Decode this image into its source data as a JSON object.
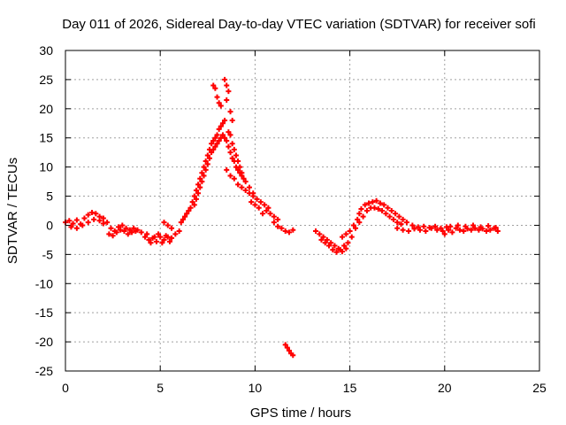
{
  "chart_data": {
    "type": "scatter",
    "title": "Day 011 of 2026, Sidereal Day-to-day VTEC variation (SDTVAR) for receiver sofi",
    "xlabel": "GPS time / hours",
    "ylabel": "SDTVAR / TECUs",
    "xlim": [
      0,
      25
    ],
    "ylim": [
      -25,
      30
    ],
    "xticks": [
      0,
      5,
      10,
      15,
      20,
      25
    ],
    "yticks": [
      -25,
      -20,
      -15,
      -10,
      -5,
      0,
      5,
      10,
      15,
      20,
      25,
      30
    ],
    "grid": true,
    "marker": "+",
    "series": [
      {
        "name": "SDTVAR",
        "color": "#ff0000",
        "points": [
          [
            0.0,
            0.5
          ],
          [
            0.2,
            0.8
          ],
          [
            0.4,
            0.3
          ],
          [
            0.6,
            0.9
          ],
          [
            0.8,
            0.2
          ],
          [
            1.0,
            1.2
          ],
          [
            1.2,
            1.8
          ],
          [
            1.4,
            2.2
          ],
          [
            1.6,
            2.0
          ],
          [
            1.8,
            1.5
          ],
          [
            0.3,
            -0.3
          ],
          [
            0.6,
            -0.5
          ],
          [
            0.9,
            0.0
          ],
          [
            1.2,
            0.5
          ],
          [
            1.5,
            1.0
          ],
          [
            1.8,
            0.8
          ],
          [
            2.0,
            0.3
          ],
          [
            2.0,
            1.2
          ],
          [
            2.2,
            0.5
          ],
          [
            2.4,
            -0.5
          ],
          [
            2.6,
            -1.0
          ],
          [
            2.8,
            -0.3
          ],
          [
            3.0,
            0.0
          ],
          [
            3.2,
            -0.5
          ],
          [
            3.4,
            -0.8
          ],
          [
            3.6,
            -0.5
          ],
          [
            2.3,
            -1.5
          ],
          [
            2.5,
            -1.8
          ],
          [
            2.7,
            -1.2
          ],
          [
            2.9,
            -0.8
          ],
          [
            3.1,
            -1.0
          ],
          [
            3.3,
            -1.5
          ],
          [
            3.5,
            -1.2
          ],
          [
            3.7,
            -1.0
          ],
          [
            3.8,
            -0.8
          ],
          [
            4.0,
            -1.2
          ],
          [
            4.2,
            -2.0
          ],
          [
            4.4,
            -2.5
          ],
          [
            4.6,
            -2.2
          ],
          [
            4.8,
            -2.8
          ],
          [
            5.0,
            -2.0
          ],
          [
            5.2,
            -2.5
          ],
          [
            5.4,
            -2.0
          ],
          [
            5.6,
            -2.2
          ],
          [
            4.3,
            -1.5
          ],
          [
            4.5,
            -3.0
          ],
          [
            4.7,
            -2.0
          ],
          [
            4.9,
            -1.5
          ],
          [
            5.1,
            -3.0
          ],
          [
            5.3,
            -1.8
          ],
          [
            5.5,
            -2.8
          ],
          [
            5.2,
            0.5
          ],
          [
            5.4,
            0.0
          ],
          [
            5.6,
            -0.5
          ],
          [
            5.8,
            -1.5
          ],
          [
            6.0,
            -1.0
          ],
          [
            6.1,
            0.5
          ],
          [
            6.2,
            1.0
          ],
          [
            6.3,
            1.5
          ],
          [
            6.4,
            2.0
          ],
          [
            6.5,
            2.5
          ],
          [
            6.6,
            3.0
          ],
          [
            6.7,
            4.0
          ],
          [
            6.8,
            5.0
          ],
          [
            6.9,
            6.0
          ],
          [
            7.0,
            7.0
          ],
          [
            7.1,
            8.0
          ],
          [
            7.2,
            9.0
          ],
          [
            7.3,
            10.0
          ],
          [
            7.4,
            11.0
          ],
          [
            7.5,
            12.0
          ],
          [
            6.8,
            3.5
          ],
          [
            6.9,
            4.5
          ],
          [
            7.0,
            5.5
          ],
          [
            7.1,
            6.5
          ],
          [
            7.2,
            7.5
          ],
          [
            7.3,
            8.5
          ],
          [
            7.4,
            9.5
          ],
          [
            7.5,
            10.5
          ],
          [
            7.6,
            11.5
          ],
          [
            7.7,
            12.5
          ],
          [
            7.6,
            13.0
          ],
          [
            7.7,
            14.0
          ],
          [
            7.8,
            14.5
          ],
          [
            7.9,
            15.0
          ],
          [
            8.0,
            15.5
          ],
          [
            8.1,
            16.5
          ],
          [
            8.2,
            17.0
          ],
          [
            8.3,
            17.5
          ],
          [
            8.4,
            18.0
          ],
          [
            7.8,
            13.0
          ],
          [
            7.9,
            13.5
          ],
          [
            8.0,
            14.0
          ],
          [
            8.1,
            14.5
          ],
          [
            8.2,
            15.0
          ],
          [
            8.3,
            15.5
          ],
          [
            8.4,
            15.0
          ],
          [
            7.8,
            24.0
          ],
          [
            7.9,
            23.5
          ],
          [
            8.0,
            22.0
          ],
          [
            8.1,
            21.0
          ],
          [
            8.2,
            20.5
          ],
          [
            8.4,
            25.0
          ],
          [
            8.5,
            24.0
          ],
          [
            8.6,
            23.0
          ],
          [
            8.5,
            21.5
          ],
          [
            8.7,
            19.5
          ],
          [
            8.8,
            18.0
          ],
          [
            8.5,
            14.5
          ],
          [
            8.6,
            13.5
          ],
          [
            8.7,
            12.5
          ],
          [
            8.8,
            11.5
          ],
          [
            8.9,
            11.0
          ],
          [
            9.0,
            10.0
          ],
          [
            9.1,
            9.5
          ],
          [
            9.2,
            9.0
          ],
          [
            9.3,
            8.5
          ],
          [
            8.6,
            16.0
          ],
          [
            8.7,
            15.5
          ],
          [
            8.8,
            14.0
          ],
          [
            8.9,
            13.0
          ],
          [
            9.0,
            12.0
          ],
          [
            9.1,
            11.0
          ],
          [
            9.2,
            10.0
          ],
          [
            9.3,
            9.0
          ],
          [
            9.4,
            8.0
          ],
          [
            8.5,
            9.5
          ],
          [
            8.7,
            8.5
          ],
          [
            8.9,
            8.0
          ],
          [
            9.1,
            7.0
          ],
          [
            9.3,
            6.5
          ],
          [
            9.5,
            6.0
          ],
          [
            9.7,
            5.5
          ],
          [
            9.9,
            5.0
          ],
          [
            9.5,
            7.5
          ],
          [
            9.7,
            6.5
          ],
          [
            9.9,
            5.5
          ],
          [
            10.1,
            4.5
          ],
          [
            10.3,
            4.0
          ],
          [
            10.5,
            3.5
          ],
          [
            10.7,
            3.0
          ],
          [
            9.8,
            4.0
          ],
          [
            10.0,
            3.5
          ],
          [
            10.2,
            3.0
          ],
          [
            10.4,
            2.0
          ],
          [
            10.6,
            2.5
          ],
          [
            10.8,
            2.0
          ],
          [
            11.0,
            1.5
          ],
          [
            11.2,
            1.0
          ],
          [
            11.0,
            0.5
          ],
          [
            11.2,
            -0.2
          ],
          [
            11.4,
            -0.5
          ],
          [
            11.6,
            -1.0
          ],
          [
            11.8,
            -1.2
          ],
          [
            12.0,
            -0.8
          ],
          [
            11.6,
            -20.5
          ],
          [
            11.7,
            -21.0
          ],
          [
            11.8,
            -21.5
          ],
          [
            11.9,
            -22.0
          ],
          [
            12.0,
            -22.3
          ],
          [
            13.2,
            -1.0
          ],
          [
            13.4,
            -1.5
          ],
          [
            13.6,
            -2.0
          ],
          [
            13.8,
            -2.5
          ],
          [
            14.0,
            -3.0
          ],
          [
            14.2,
            -3.5
          ],
          [
            14.4,
            -4.0
          ],
          [
            14.6,
            -4.5
          ],
          [
            14.8,
            -4.0
          ],
          [
            13.5,
            -2.5
          ],
          [
            13.7,
            -3.0
          ],
          [
            13.9,
            -3.5
          ],
          [
            14.1,
            -4.2
          ],
          [
            14.3,
            -4.6
          ],
          [
            14.5,
            -4.2
          ],
          [
            14.7,
            -3.5
          ],
          [
            14.6,
            -2.0
          ],
          [
            14.8,
            -1.5
          ],
          [
            15.0,
            -1.0
          ],
          [
            15.2,
            0.0
          ],
          [
            15.4,
            1.0
          ],
          [
            15.5,
            2.0
          ],
          [
            15.6,
            2.8
          ],
          [
            15.8,
            3.5
          ],
          [
            16.0,
            3.8
          ],
          [
            14.9,
            -3.0
          ],
          [
            15.1,
            -2.0
          ],
          [
            15.3,
            -0.5
          ],
          [
            15.5,
            0.5
          ],
          [
            15.7,
            1.5
          ],
          [
            15.9,
            2.5
          ],
          [
            16.1,
            3.0
          ],
          [
            16.2,
            4.0
          ],
          [
            16.4,
            4.2
          ],
          [
            16.6,
            3.8
          ],
          [
            16.8,
            3.5
          ],
          [
            17.0,
            3.0
          ],
          [
            17.2,
            2.5
          ],
          [
            17.4,
            2.0
          ],
          [
            17.6,
            1.5
          ],
          [
            17.8,
            1.0
          ],
          [
            16.3,
            3.0
          ],
          [
            16.5,
            2.8
          ],
          [
            16.7,
            2.5
          ],
          [
            16.9,
            2.0
          ],
          [
            17.1,
            1.5
          ],
          [
            17.3,
            1.0
          ],
          [
            17.5,
            0.5
          ],
          [
            17.7,
            0.2
          ],
          [
            17.5,
            -0.5
          ],
          [
            17.8,
            -0.8
          ],
          [
            18.1,
            -1.0
          ],
          [
            18.4,
            -0.6
          ],
          [
            18.7,
            -0.8
          ],
          [
            19.0,
            -1.0
          ],
          [
            19.3,
            -0.5
          ],
          [
            19.6,
            -0.8
          ],
          [
            19.9,
            -1.0
          ],
          [
            18.0,
            0.5
          ],
          [
            18.3,
            0.0
          ],
          [
            18.6,
            -0.3
          ],
          [
            18.9,
            -0.2
          ],
          [
            19.2,
            -0.4
          ],
          [
            19.5,
            -0.2
          ],
          [
            19.8,
            -0.5
          ],
          [
            20.1,
            -0.3
          ],
          [
            20.0,
            -1.5
          ],
          [
            20.2,
            -0.8
          ],
          [
            20.4,
            -1.2
          ],
          [
            20.6,
            -0.5
          ],
          [
            20.8,
            -0.8
          ],
          [
            21.0,
            -1.0
          ],
          [
            21.2,
            -0.6
          ],
          [
            21.4,
            -0.8
          ],
          [
            21.6,
            -0.5
          ],
          [
            21.8,
            -0.8
          ],
          [
            22.0,
            -0.6
          ],
          [
            22.2,
            -1.0
          ],
          [
            22.4,
            -0.8
          ],
          [
            22.6,
            -0.5
          ],
          [
            22.8,
            -1.0
          ],
          [
            20.3,
            -0.2
          ],
          [
            20.7,
            0.0
          ],
          [
            21.1,
            -0.2
          ],
          [
            21.5,
            0.0
          ],
          [
            21.9,
            -0.3
          ],
          [
            22.3,
            -0.1
          ],
          [
            22.7,
            -0.4
          ]
        ]
      }
    ]
  }
}
